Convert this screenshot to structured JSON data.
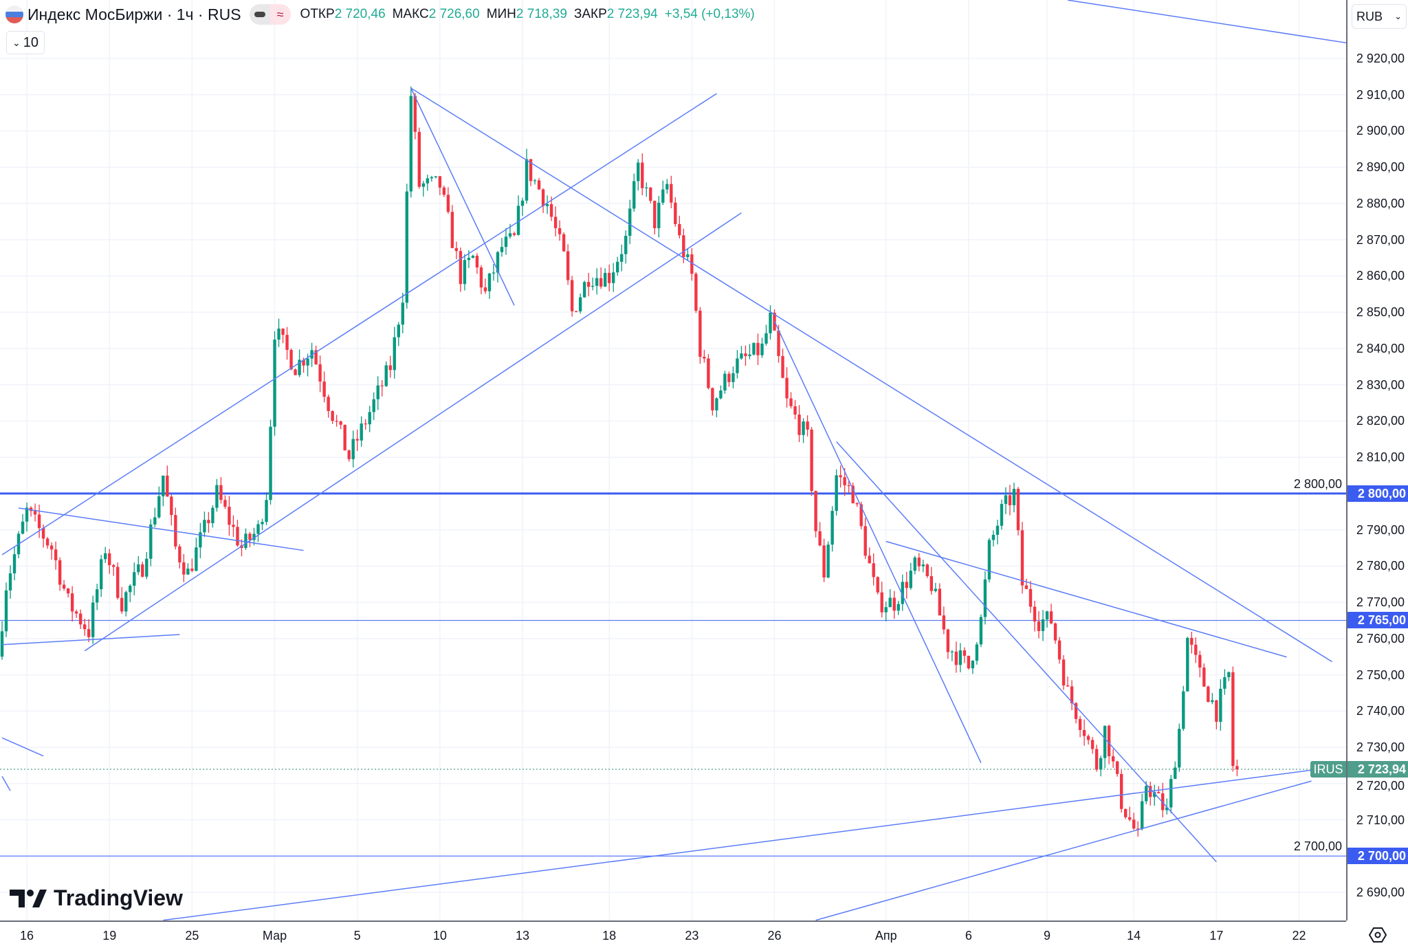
{
  "header": {
    "title": "Индекс МосБиржи · 1ч · RUS",
    "open_label": "ОТКР",
    "open": "2 720,46",
    "high_label": "МАКС",
    "high": "2 726,60",
    "low_label": "МИН",
    "low": "2 718,39",
    "close_label": "ЗАКР",
    "close": "2 723,94",
    "change": "+3,54 (+0,13%)",
    "collapse_count": "10",
    "pill_icons": [
      "minus-icon",
      "approx-icon"
    ]
  },
  "currency": "RUB",
  "symbol_tag": "IRUS",
  "logo": "TradingView",
  "colors": {
    "up": "#089981",
    "down": "#f23645",
    "line": "#5b7cf7",
    "hline": "#3b5cf0",
    "last": "#4f9e8b"
  },
  "chart_data": {
    "type": "candlestick",
    "ylim": [
      2682,
      2936
    ],
    "bars": 300,
    "y_ticks": [
      "2 920,00",
      "2 910,00",
      "2 900,00",
      "2 890,00",
      "2 880,00",
      "2 870,00",
      "2 860,00",
      "2 850,00",
      "2 840,00",
      "2 830,00",
      "2 820,00",
      "2 810,00",
      "2 800,00",
      "2 790,00",
      "2 780,00",
      "2 770,00",
      "2 760,00",
      "2 750,00",
      "2 740,00",
      "2 730,00",
      "2 720,00",
      "2 710,00",
      "2 700,00",
      "2 690,00"
    ],
    "y_tick_values": [
      2920,
      2910,
      2900,
      2890,
      2880,
      2870,
      2860,
      2850,
      2840,
      2830,
      2820,
      2810,
      2800,
      2790,
      2780,
      2770,
      2760,
      2750,
      2740,
      2730,
      2720,
      2710,
      2700,
      2690
    ],
    "x_ticks": [
      {
        "label": "16",
        "bar": 6
      },
      {
        "label": "19",
        "bar": 26
      },
      {
        "label": "25",
        "bar": 46
      },
      {
        "label": "Мар",
        "bar": 66
      },
      {
        "label": "5",
        "bar": 86
      },
      {
        "label": "10",
        "bar": 106
      },
      {
        "label": "13",
        "bar": 126
      },
      {
        "label": "18",
        "bar": 147
      },
      {
        "label": "23",
        "bar": 167
      },
      {
        "label": "26",
        "bar": 187
      },
      {
        "label": "Апр",
        "bar": 214
      },
      {
        "label": "6",
        "bar": 234
      },
      {
        "label": "9",
        "bar": 253
      },
      {
        "label": "14",
        "bar": 274
      },
      {
        "label": "17",
        "bar": 294
      },
      {
        "label": "22",
        "bar": 314
      }
    ],
    "price_path": [
      [
        0,
        2755
      ],
      [
        2,
        2775
      ],
      [
        7,
        2795
      ],
      [
        13,
        2785
      ],
      [
        17,
        2770
      ],
      [
        22,
        2762
      ],
      [
        26,
        2785
      ],
      [
        30,
        2770
      ],
      [
        35,
        2780
      ],
      [
        40,
        2805
      ],
      [
        43,
        2785
      ],
      [
        46,
        2778
      ],
      [
        50,
        2790
      ],
      [
        53,
        2800
      ],
      [
        59,
        2785
      ],
      [
        63,
        2790
      ],
      [
        65,
        2800
      ],
      [
        66,
        2820
      ],
      [
        67,
        2845
      ],
      [
        72,
        2835
      ],
      [
        76,
        2840
      ],
      [
        80,
        2825
      ],
      [
        85,
        2810
      ],
      [
        87,
        2815
      ],
      [
        91,
        2825
      ],
      [
        95,
        2835
      ],
      [
        98,
        2855
      ],
      [
        100,
        2910
      ],
      [
        102,
        2885
      ],
      [
        107,
        2885
      ],
      [
        109,
        2875
      ],
      [
        112,
        2860
      ],
      [
        115,
        2865
      ],
      [
        118,
        2855
      ],
      [
        122,
        2868
      ],
      [
        125,
        2870
      ],
      [
        128,
        2890
      ],
      [
        133,
        2880
      ],
      [
        137,
        2865
      ],
      [
        139,
        2850
      ],
      [
        143,
        2860
      ],
      [
        148,
        2860
      ],
      [
        152,
        2870
      ],
      [
        155,
        2890
      ],
      [
        159,
        2875
      ],
      [
        162,
        2885
      ],
      [
        165,
        2870
      ],
      [
        168,
        2860
      ],
      [
        170,
        2840
      ],
      [
        173,
        2825
      ],
      [
        178,
        2835
      ],
      [
        185,
        2840
      ],
      [
        187,
        2848
      ],
      [
        191,
        2825
      ],
      [
        196,
        2815
      ],
      [
        198,
        2790
      ],
      [
        200,
        2778
      ],
      [
        203,
        2805
      ],
      [
        207,
        2800
      ],
      [
        210,
        2785
      ],
      [
        213,
        2770
      ],
      [
        217,
        2770
      ],
      [
        222,
        2780
      ],
      [
        226,
        2775
      ],
      [
        230,
        2758
      ],
      [
        235,
        2752
      ],
      [
        238,
        2765
      ],
      [
        240,
        2785
      ],
      [
        243,
        2795
      ],
      [
        246,
        2800
      ],
      [
        248,
        2775
      ],
      [
        252,
        2765
      ],
      [
        255,
        2765
      ],
      [
        259,
        2745
      ],
      [
        263,
        2735
      ],
      [
        266,
        2725
      ],
      [
        268,
        2735
      ],
      [
        272,
        2715
      ],
      [
        276,
        2705
      ],
      [
        278,
        2720
      ],
      [
        283,
        2712
      ],
      [
        286,
        2735
      ],
      [
        288,
        2760
      ],
      [
        291,
        2750
      ],
      [
        295,
        2740
      ],
      [
        298,
        2750
      ],
      [
        299,
        2725
      ],
      [
        300,
        2723.94
      ]
    ],
    "last_price": 2723.94,
    "last_price_label": "2 723,94",
    "horizontal_levels": [
      {
        "price": 2800,
        "label": "2 800,00"
      },
      {
        "price": 2765,
        "label": "2 765,00"
      },
      {
        "price": 2700,
        "label": "2 700,00"
      }
    ],
    "trendlines": [
      [
        [
          258,
          2936.1
        ],
        [
          326,
          2924.2
        ]
      ],
      [
        [
          0,
          2783.1
        ],
        [
          173,
          2910.3
        ]
      ],
      [
        [
          20,
          2756.6
        ],
        [
          179,
          2877.4
        ]
      ],
      [
        [
          99,
          2911.8
        ],
        [
          322,
          2753.6
        ]
      ],
      [
        [
          99,
          2911.8
        ],
        [
          124,
          2851.9
        ]
      ],
      [
        [
          4,
          2796
        ],
        [
          73,
          2784.3
        ]
      ],
      [
        [
          0,
          2758.3
        ],
        [
          43,
          2761.1
        ]
      ],
      [
        [
          187,
          2847.5
        ],
        [
          237,
          2725.7
        ]
      ],
      [
        [
          202,
          2814.3
        ],
        [
          294,
          2698.4
        ]
      ],
      [
        [
          214,
          2786.8
        ],
        [
          311,
          2754.9
        ]
      ],
      [
        [
          39,
          2682.3
        ],
        [
          317,
          2723.7
        ]
      ],
      [
        [
          197,
          2682.3
        ],
        [
          317,
          2720.7
        ]
      ],
      [
        [
          0,
          2732.6
        ],
        [
          10,
          2727.6
        ]
      ],
      [
        [
          0,
          2722
        ],
        [
          2,
          2718
        ]
      ]
    ]
  }
}
